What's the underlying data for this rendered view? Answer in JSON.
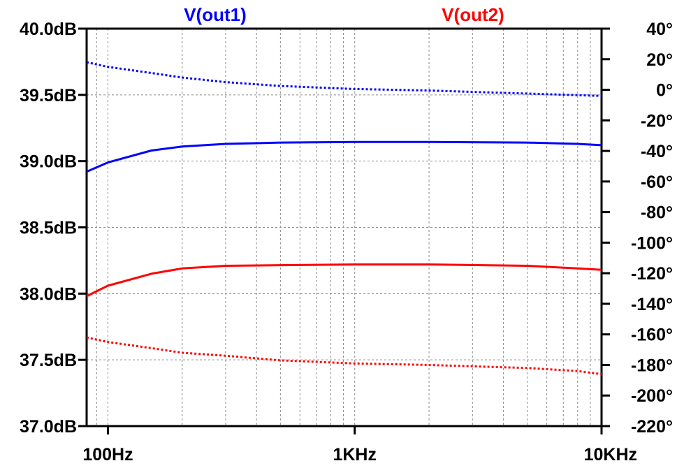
{
  "chart_data": {
    "type": "line",
    "title": "",
    "xlabel": "",
    "ylabel_left": "",
    "ylabel_right": "",
    "x_scale": "log",
    "xlim": [
      82,
      10000
    ],
    "ylim_left": [
      37.0,
      40.0
    ],
    "ylim_right": [
      -220,
      40
    ],
    "grid": true,
    "legend": [
      "V(out1)",
      "V(out2)"
    ],
    "x_ticks": [
      {
        "value": 100,
        "label": "100Hz"
      },
      {
        "value": 1000,
        "label": "1KHz"
      },
      {
        "value": 10000,
        "label": "10KHz"
      }
    ],
    "y_left_ticks": [
      {
        "value": 40.0,
        "label": "40.0dB"
      },
      {
        "value": 39.5,
        "label": "39.5dB"
      },
      {
        "value": 39.0,
        "label": "39.0dB"
      },
      {
        "value": 38.5,
        "label": "38.5dB"
      },
      {
        "value": 38.0,
        "label": "38.0dB"
      },
      {
        "value": 37.5,
        "label": "37.5dB"
      },
      {
        "value": 37.0,
        "label": "37.0dB"
      }
    ],
    "y_right_ticks": [
      {
        "value": 40,
        "label": "40°"
      },
      {
        "value": 20,
        "label": "20°"
      },
      {
        "value": 0,
        "label": "0°"
      },
      {
        "value": -20,
        "label": "-20°"
      },
      {
        "value": -40,
        "label": "-40°"
      },
      {
        "value": -60,
        "label": "-60°"
      },
      {
        "value": -80,
        "label": "-80°"
      },
      {
        "value": -100,
        "label": "-100°"
      },
      {
        "value": -120,
        "label": "-120°"
      },
      {
        "value": -140,
        "label": "-140°"
      },
      {
        "value": -160,
        "label": "-160°"
      },
      {
        "value": -180,
        "label": "-180°"
      },
      {
        "value": -200,
        "label": "-200°"
      },
      {
        "value": -220,
        "label": "-220°"
      }
    ],
    "series": [
      {
        "name": "V(out1)",
        "quantity": "magnitude",
        "axis": "left",
        "color": "#0000FF",
        "style": "solid",
        "x": [
          82,
          100,
          150,
          200,
          300,
          500,
          1000,
          2000,
          5000,
          8000,
          10000
        ],
        "y": [
          38.92,
          38.99,
          39.08,
          39.11,
          39.13,
          39.14,
          39.145,
          39.145,
          39.14,
          39.13,
          39.12
        ]
      },
      {
        "name": "V(out1)",
        "quantity": "phase",
        "axis": "right",
        "color": "#0000FF",
        "style": "dotted",
        "x": [
          82,
          100,
          150,
          200,
          300,
          500,
          1000,
          2000,
          5000,
          8000,
          10000
        ],
        "y": [
          18,
          15,
          11,
          8,
          5,
          2.5,
          0.5,
          -0.5,
          -2.5,
          -3.5,
          -4
        ]
      },
      {
        "name": "V(out2)",
        "quantity": "magnitude",
        "axis": "left",
        "color": "#FF0000",
        "style": "solid",
        "x": [
          82,
          100,
          150,
          200,
          300,
          500,
          1000,
          2000,
          5000,
          8000,
          10000
        ],
        "y": [
          37.98,
          38.06,
          38.15,
          38.19,
          38.21,
          38.215,
          38.22,
          38.22,
          38.21,
          38.19,
          38.18
        ]
      },
      {
        "name": "V(out2)",
        "quantity": "phase",
        "axis": "right",
        "color": "#FF0000",
        "style": "dotted",
        "x": [
          82,
          100,
          150,
          200,
          300,
          500,
          1000,
          2000,
          5000,
          8000,
          10000
        ],
        "y": [
          -162,
          -165,
          -169,
          -172,
          -174,
          -177,
          -179,
          -180,
          -182,
          -184,
          -186
        ]
      }
    ]
  }
}
